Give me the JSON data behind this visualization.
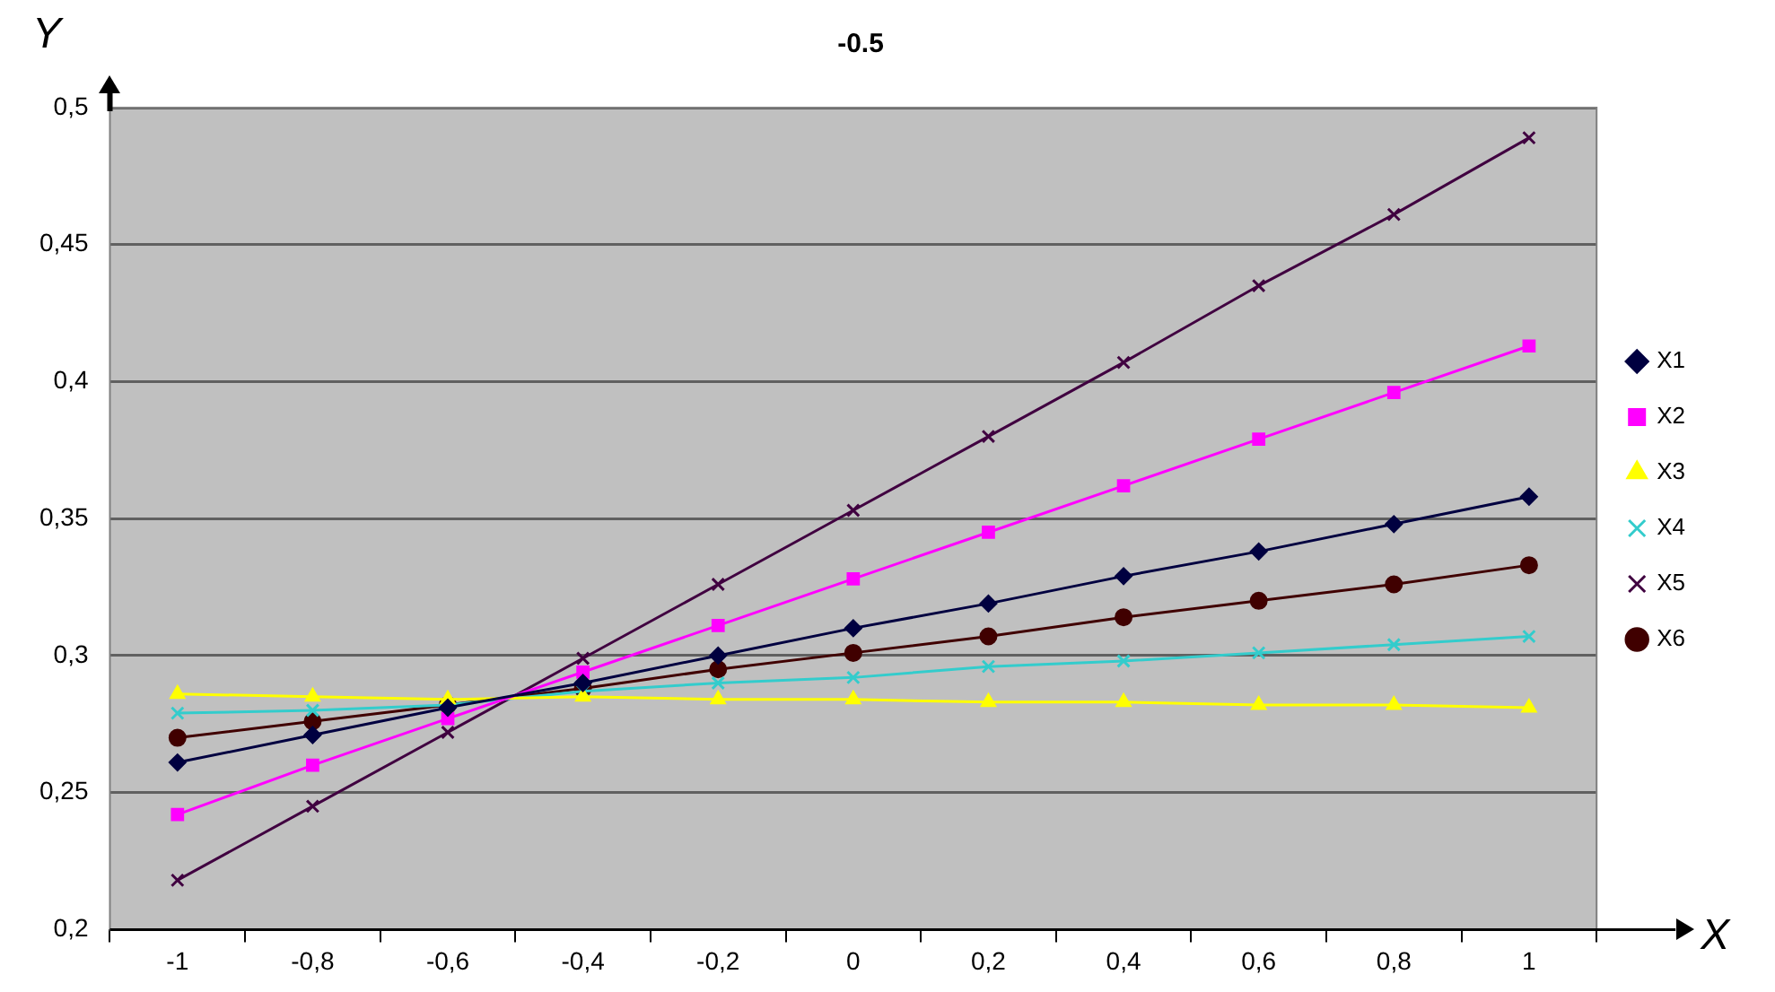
{
  "chart_data": {
    "type": "line",
    "title": "-0.5",
    "xlabel": "X",
    "ylabel": "Y",
    "categories": [
      "-1",
      "-0,8",
      "-0,6",
      "-0,4",
      "-0,2",
      "0",
      "0,2",
      "0,4",
      "0,6",
      "0,8",
      "1"
    ],
    "series": [
      {
        "name": "X1",
        "color": "#000040",
        "marker": "diamond",
        "values": [
          0.261,
          0.271,
          0.281,
          0.29,
          0.3,
          0.31,
          0.319,
          0.329,
          0.338,
          0.348,
          0.358
        ]
      },
      {
        "name": "X2",
        "color": "#ff00ff",
        "marker": "square",
        "values": [
          0.242,
          0.26,
          0.277,
          0.294,
          0.311,
          0.328,
          0.345,
          0.362,
          0.379,
          0.396,
          0.413
        ]
      },
      {
        "name": "X3",
        "color": "#ffff00",
        "marker": "triangle",
        "values": [
          0.286,
          0.285,
          0.284,
          0.285,
          0.284,
          0.284,
          0.283,
          0.283,
          0.282,
          0.282,
          0.281
        ]
      },
      {
        "name": "X4",
        "color": "#33cccc",
        "marker": "cross",
        "values": [
          0.279,
          0.28,
          0.282,
          0.287,
          0.29,
          0.292,
          0.296,
          0.298,
          0.301,
          0.304,
          0.307
        ]
      },
      {
        "name": "X5",
        "color": "#400040",
        "marker": "cross",
        "values": [
          0.218,
          0.245,
          0.272,
          0.299,
          0.326,
          0.353,
          0.38,
          0.407,
          0.435,
          0.461,
          0.489
        ]
      },
      {
        "name": "X6",
        "color": "#400000",
        "marker": "circle",
        "values": [
          0.27,
          0.276,
          0.282,
          0.288,
          0.295,
          0.301,
          0.307,
          0.314,
          0.32,
          0.326,
          0.333
        ]
      }
    ],
    "ylim": [
      0.2,
      0.5
    ],
    "yticks": [
      {
        "value": 0.2,
        "label": "0,2"
      },
      {
        "value": 0.25,
        "label": "0,25"
      },
      {
        "value": 0.3,
        "label": "0,3"
      },
      {
        "value": 0.35,
        "label": "0,35"
      },
      {
        "value": 0.4,
        "label": "0,4"
      },
      {
        "value": 0.45,
        "label": "0,45"
      },
      {
        "value": 0.5,
        "label": "0,5"
      }
    ],
    "grid": "y",
    "legend": "right",
    "line_style": "solid"
  }
}
